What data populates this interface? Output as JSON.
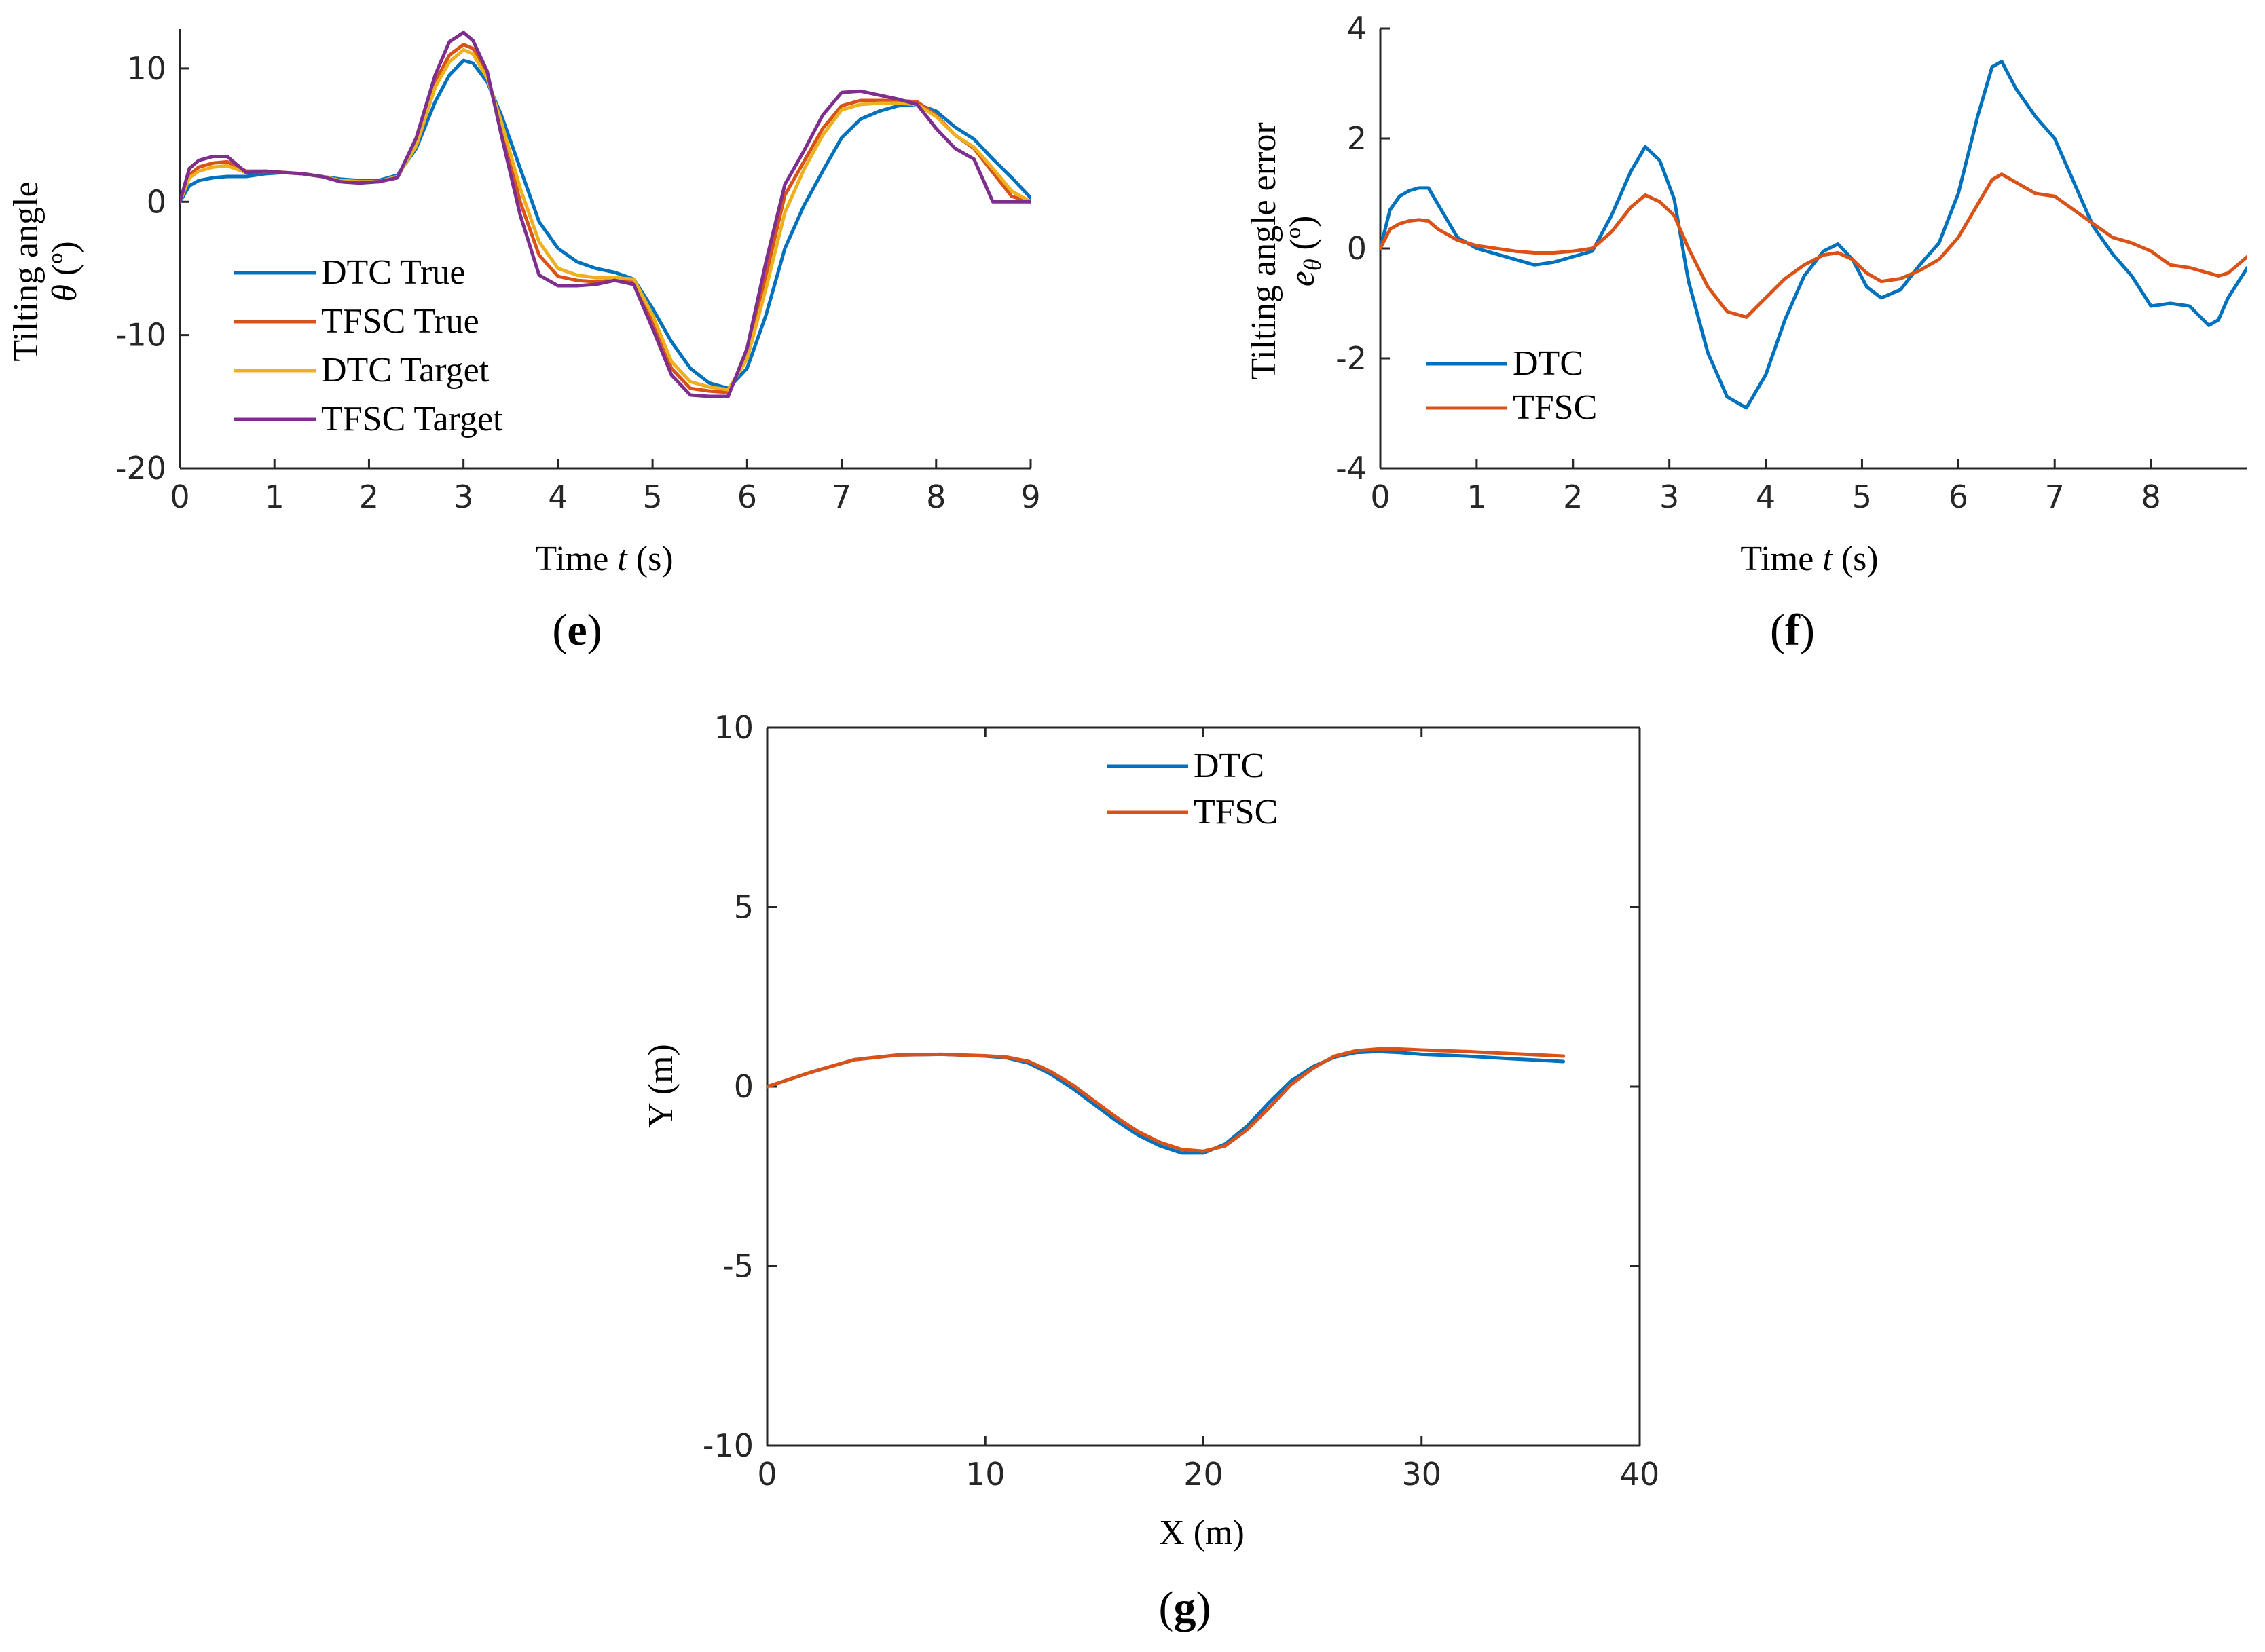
{
  "chart_data": [
    {
      "id": "e",
      "type": "line",
      "panel_label_open": "(",
      "panel_label_letter": "e",
      "panel_label_close": ")",
      "xlabel_prefix": "Time ",
      "xlabel_var": "t",
      "xlabel_unit": " (s)",
      "ylabel_line1": "Tilting angle",
      "ylabel_var": "θ",
      "ylabel_unit": " (º)",
      "xlim": [
        0,
        9
      ],
      "ylim": [
        -20,
        13
      ],
      "xticks": [
        "0",
        "1",
        "2",
        "3",
        "4",
        "5",
        "6",
        "7",
        "8",
        "9"
      ],
      "yticks": [
        "-20",
        "-10",
        "0",
        "10"
      ],
      "xtick_values": [
        0,
        1,
        2,
        3,
        4,
        5,
        6,
        7,
        8,
        9
      ],
      "ytick_values": [
        -20,
        -10,
        0,
        10
      ],
      "series": [
        {
          "name": "DTC True",
          "color": "#0072BD",
          "x": [
            0,
            0.1,
            0.2,
            0.35,
            0.5,
            0.7,
            0.9,
            1.1,
            1.3,
            1.5,
            1.7,
            1.9,
            2.1,
            2.3,
            2.5,
            2.7,
            2.85,
            3.0,
            3.1,
            3.25,
            3.4,
            3.6,
            3.8,
            4.0,
            4.2,
            4.4,
            4.6,
            4.8,
            5.0,
            5.2,
            5.4,
            5.6,
            5.8,
            6.0,
            6.2,
            6.4,
            6.6,
            6.8,
            7.0,
            7.2,
            7.4,
            7.6,
            7.8,
            8.0,
            8.2,
            8.4,
            8.6,
            8.8,
            9.0
          ],
          "y": [
            0,
            1.2,
            1.6,
            1.8,
            1.9,
            1.9,
            2.1,
            2.2,
            2.1,
            1.9,
            1.7,
            1.6,
            1.6,
            2.0,
            4.0,
            7.5,
            9.5,
            10.6,
            10.4,
            9.0,
            6.5,
            2.5,
            -1.5,
            -3.5,
            -4.5,
            -5.0,
            -5.3,
            -5.8,
            -8.0,
            -10.5,
            -12.5,
            -13.6,
            -14.0,
            -12.5,
            -8.5,
            -3.5,
            -0.3,
            2.3,
            4.8,
            6.2,
            6.8,
            7.2,
            7.3,
            6.8,
            5.6,
            4.7,
            3.2,
            1.8,
            0.3
          ]
        },
        {
          "name": "TFSC True",
          "color": "#D95319",
          "x": [
            0,
            0.1,
            0.2,
            0.35,
            0.5,
            0.7,
            0.9,
            1.1,
            1.3,
            1.5,
            1.7,
            1.9,
            2.1,
            2.3,
            2.5,
            2.7,
            2.85,
            3.0,
            3.1,
            3.25,
            3.4,
            3.6,
            3.8,
            4.0,
            4.2,
            4.4,
            4.6,
            4.8,
            5.0,
            5.2,
            5.4,
            5.6,
            5.8,
            6.0,
            6.2,
            6.4,
            6.6,
            6.8,
            7.0,
            7.2,
            7.4,
            7.6,
            7.8,
            8.0,
            8.2,
            8.4,
            8.6,
            8.8,
            9.0
          ],
          "y": [
            0,
            2.0,
            2.6,
            2.9,
            3.0,
            2.3,
            2.3,
            2.2,
            2.1,
            1.9,
            1.6,
            1.5,
            1.5,
            1.8,
            4.5,
            9.0,
            11.0,
            11.8,
            11.5,
            9.5,
            5.5,
            0,
            -4.0,
            -5.6,
            -5.9,
            -6.0,
            -5.9,
            -6.0,
            -9.0,
            -12.5,
            -14.0,
            -14.2,
            -14.3,
            -11.5,
            -5.5,
            0.5,
            3.0,
            5.5,
            7.2,
            7.6,
            7.6,
            7.6,
            7.5,
            6.5,
            5.0,
            4.0,
            2.2,
            0.4,
            0.0
          ]
        },
        {
          "name": "DTC Target",
          "color": "#EDB120",
          "x": [
            0,
            0.1,
            0.2,
            0.35,
            0.5,
            0.7,
            0.9,
            1.1,
            1.3,
            1.5,
            1.7,
            1.9,
            2.1,
            2.3,
            2.5,
            2.7,
            2.85,
            3.0,
            3.1,
            3.25,
            3.4,
            3.6,
            3.8,
            4.0,
            4.2,
            4.4,
            4.6,
            4.8,
            5.0,
            5.2,
            5.4,
            5.6,
            5.8,
            6.0,
            6.2,
            6.4,
            6.6,
            6.8,
            7.0,
            7.2,
            7.4,
            7.6,
            7.8,
            8.0,
            8.2,
            8.4,
            8.6,
            8.8,
            9.0
          ],
          "y": [
            0,
            1.8,
            2.3,
            2.6,
            2.7,
            2.2,
            2.3,
            2.2,
            2.1,
            1.9,
            1.6,
            1.5,
            1.5,
            1.9,
            4.2,
            8.6,
            10.5,
            11.4,
            11.1,
            9.3,
            6.0,
            1.0,
            -3.0,
            -5.0,
            -5.5,
            -5.7,
            -5.7,
            -5.8,
            -8.5,
            -12.0,
            -13.5,
            -13.9,
            -14.1,
            -11.8,
            -6.5,
            -0.8,
            2.4,
            5.0,
            6.9,
            7.3,
            7.4,
            7.4,
            7.3,
            6.4,
            5.0,
            4.1,
            2.5,
            0.8,
            0.0
          ]
        },
        {
          "name": "TFSC Target",
          "color": "#7E2F8E",
          "x": [
            0,
            0.1,
            0.2,
            0.35,
            0.5,
            0.7,
            0.9,
            1.1,
            1.3,
            1.5,
            1.7,
            1.9,
            2.1,
            2.3,
            2.5,
            2.7,
            2.85,
            3.0,
            3.1,
            3.25,
            3.4,
            3.6,
            3.8,
            4.0,
            4.2,
            4.4,
            4.6,
            4.8,
            5.0,
            5.2,
            5.4,
            5.6,
            5.8,
            6.0,
            6.2,
            6.4,
            6.6,
            6.8,
            7.0,
            7.2,
            7.4,
            7.6,
            7.8,
            8.0,
            8.2,
            8.4,
            8.6,
            8.8,
            9.0
          ],
          "y": [
            0,
            2.5,
            3.1,
            3.4,
            3.4,
            2.2,
            2.3,
            2.2,
            2.1,
            1.9,
            1.5,
            1.4,
            1.5,
            1.8,
            4.8,
            9.5,
            12.0,
            12.7,
            12.1,
            9.8,
            5.0,
            -1.0,
            -5.5,
            -6.3,
            -6.3,
            -6.2,
            -5.9,
            -6.2,
            -9.5,
            -13.0,
            -14.5,
            -14.6,
            -14.6,
            -11.0,
            -4.5,
            1.3,
            3.8,
            6.5,
            8.2,
            8.3,
            8.0,
            7.7,
            7.3,
            5.5,
            4.0,
            3.2,
            0.0,
            0.0,
            0.0
          ]
        }
      ]
    },
    {
      "id": "f",
      "type": "line",
      "panel_label_open": "(",
      "panel_label_letter": "f",
      "panel_label_close": ")",
      "xlabel_prefix": "Time ",
      "xlabel_var": "t",
      "xlabel_unit": " (s)",
      "ylabel_line1": "Tilting angle error",
      "ylabel_var": "e",
      "ylabel_sub": "θ",
      "ylabel_unit": " (º)",
      "xlim": [
        0,
        9
      ],
      "ylim": [
        -4,
        4
      ],
      "xticks": [
        "0",
        "1",
        "2",
        "3",
        "4",
        "5",
        "6",
        "7",
        "8"
      ],
      "yticks": [
        "-4",
        "-2",
        "0",
        "2",
        "4"
      ],
      "xtick_values": [
        0,
        1,
        2,
        3,
        4,
        5,
        6,
        7,
        8
      ],
      "ytick_values": [
        -4,
        -2,
        0,
        2,
        4
      ],
      "series": [
        {
          "name": "DTC",
          "color": "#0072BD",
          "x": [
            0,
            0.1,
            0.2,
            0.3,
            0.4,
            0.5,
            0.6,
            0.8,
            1.0,
            1.2,
            1.4,
            1.6,
            1.8,
            2.0,
            2.2,
            2.4,
            2.6,
            2.75,
            2.9,
            3.05,
            3.2,
            3.4,
            3.6,
            3.8,
            4.0,
            4.2,
            4.4,
            4.6,
            4.75,
            4.9,
            5.05,
            5.2,
            5.4,
            5.6,
            5.8,
            6.0,
            6.2,
            6.35,
            6.45,
            6.6,
            6.8,
            7.0,
            7.2,
            7.4,
            7.6,
            7.8,
            8.0,
            8.2,
            8.4,
            8.6,
            8.7,
            8.8,
            9.0
          ],
          "y": [
            0,
            0.7,
            0.95,
            1.05,
            1.1,
            1.1,
            0.8,
            0.2,
            0.0,
            -0.1,
            -0.2,
            -0.3,
            -0.25,
            -0.15,
            -0.05,
            0.6,
            1.4,
            1.85,
            1.6,
            0.9,
            -0.6,
            -1.9,
            -2.7,
            -2.9,
            -2.3,
            -1.3,
            -0.5,
            -0.05,
            0.08,
            -0.2,
            -0.7,
            -0.9,
            -0.75,
            -0.3,
            0.1,
            1.0,
            2.4,
            3.3,
            3.4,
            2.9,
            2.4,
            2.0,
            1.2,
            0.4,
            -0.1,
            -0.5,
            -1.05,
            -1.0,
            -1.05,
            -1.4,
            -1.3,
            -0.9,
            -0.35
          ]
        },
        {
          "name": "TFSC",
          "color": "#D95319",
          "x": [
            0,
            0.1,
            0.2,
            0.3,
            0.4,
            0.5,
            0.6,
            0.8,
            1.0,
            1.2,
            1.4,
            1.6,
            1.8,
            2.0,
            2.2,
            2.4,
            2.6,
            2.75,
            2.9,
            3.05,
            3.2,
            3.4,
            3.6,
            3.8,
            4.0,
            4.2,
            4.4,
            4.6,
            4.75,
            4.9,
            5.05,
            5.2,
            5.4,
            5.6,
            5.8,
            6.0,
            6.2,
            6.35,
            6.45,
            6.6,
            6.8,
            7.0,
            7.2,
            7.4,
            7.6,
            7.8,
            8.0,
            8.2,
            8.4,
            8.6,
            8.7,
            8.8,
            9.0
          ],
          "y": [
            0,
            0.35,
            0.45,
            0.5,
            0.52,
            0.5,
            0.35,
            0.15,
            0.05,
            0.0,
            -0.05,
            -0.08,
            -0.08,
            -0.05,
            0.0,
            0.3,
            0.75,
            0.97,
            0.85,
            0.6,
            0.0,
            -0.7,
            -1.15,
            -1.25,
            -0.9,
            -0.55,
            -0.3,
            -0.12,
            -0.08,
            -0.2,
            -0.45,
            -0.6,
            -0.55,
            -0.4,
            -0.2,
            0.2,
            0.8,
            1.25,
            1.35,
            1.2,
            1.0,
            0.95,
            0.7,
            0.45,
            0.2,
            0.1,
            -0.05,
            -0.3,
            -0.35,
            -0.45,
            -0.5,
            -0.45,
            -0.15
          ]
        }
      ]
    },
    {
      "id": "g",
      "type": "line",
      "panel_label_open": "(",
      "panel_label_letter": "g",
      "panel_label_close": ")",
      "xlabel": "X (m)",
      "ylabel": "Y (m)",
      "xlim": [
        0,
        40
      ],
      "ylim": [
        -10,
        10
      ],
      "xticks": [
        "0",
        "10",
        "20",
        "30",
        "40"
      ],
      "yticks": [
        "-10",
        "-5",
        "0",
        "5",
        "10"
      ],
      "xtick_values": [
        0,
        10,
        20,
        30,
        40
      ],
      "ytick_values": [
        -10,
        -5,
        0,
        5,
        10
      ],
      "series": [
        {
          "name": "DTC",
          "color": "#0072BD",
          "x": [
            0,
            2,
            4,
            6,
            8,
            10,
            11,
            12,
            13,
            14,
            15,
            16,
            17,
            18,
            19,
            20,
            21,
            22,
            23,
            24,
            25,
            26,
            27,
            28,
            29,
            30,
            32,
            34,
            36.5
          ],
          "y": [
            0,
            0.4,
            0.75,
            0.88,
            0.9,
            0.85,
            0.8,
            0.65,
            0.35,
            -0.05,
            -0.5,
            -0.95,
            -1.35,
            -1.65,
            -1.85,
            -1.85,
            -1.6,
            -1.1,
            -0.45,
            0.15,
            0.55,
            0.82,
            0.95,
            0.98,
            0.95,
            0.9,
            0.85,
            0.78,
            0.7
          ]
        },
        {
          "name": "TFSC",
          "color": "#D95319",
          "x": [
            0,
            2,
            4,
            6,
            8,
            10,
            11,
            12,
            13,
            14,
            15,
            16,
            17,
            18,
            19,
            20,
            21,
            22,
            23,
            24,
            25,
            26,
            27,
            28,
            29,
            30,
            32,
            34,
            36.5
          ],
          "y": [
            0,
            0.4,
            0.75,
            0.88,
            0.9,
            0.86,
            0.82,
            0.7,
            0.42,
            0.05,
            -0.4,
            -0.85,
            -1.25,
            -1.55,
            -1.75,
            -1.8,
            -1.65,
            -1.2,
            -0.6,
            0.05,
            0.5,
            0.85,
            1.0,
            1.05,
            1.05,
            1.02,
            0.98,
            0.92,
            0.85
          ]
        }
      ]
    }
  ]
}
